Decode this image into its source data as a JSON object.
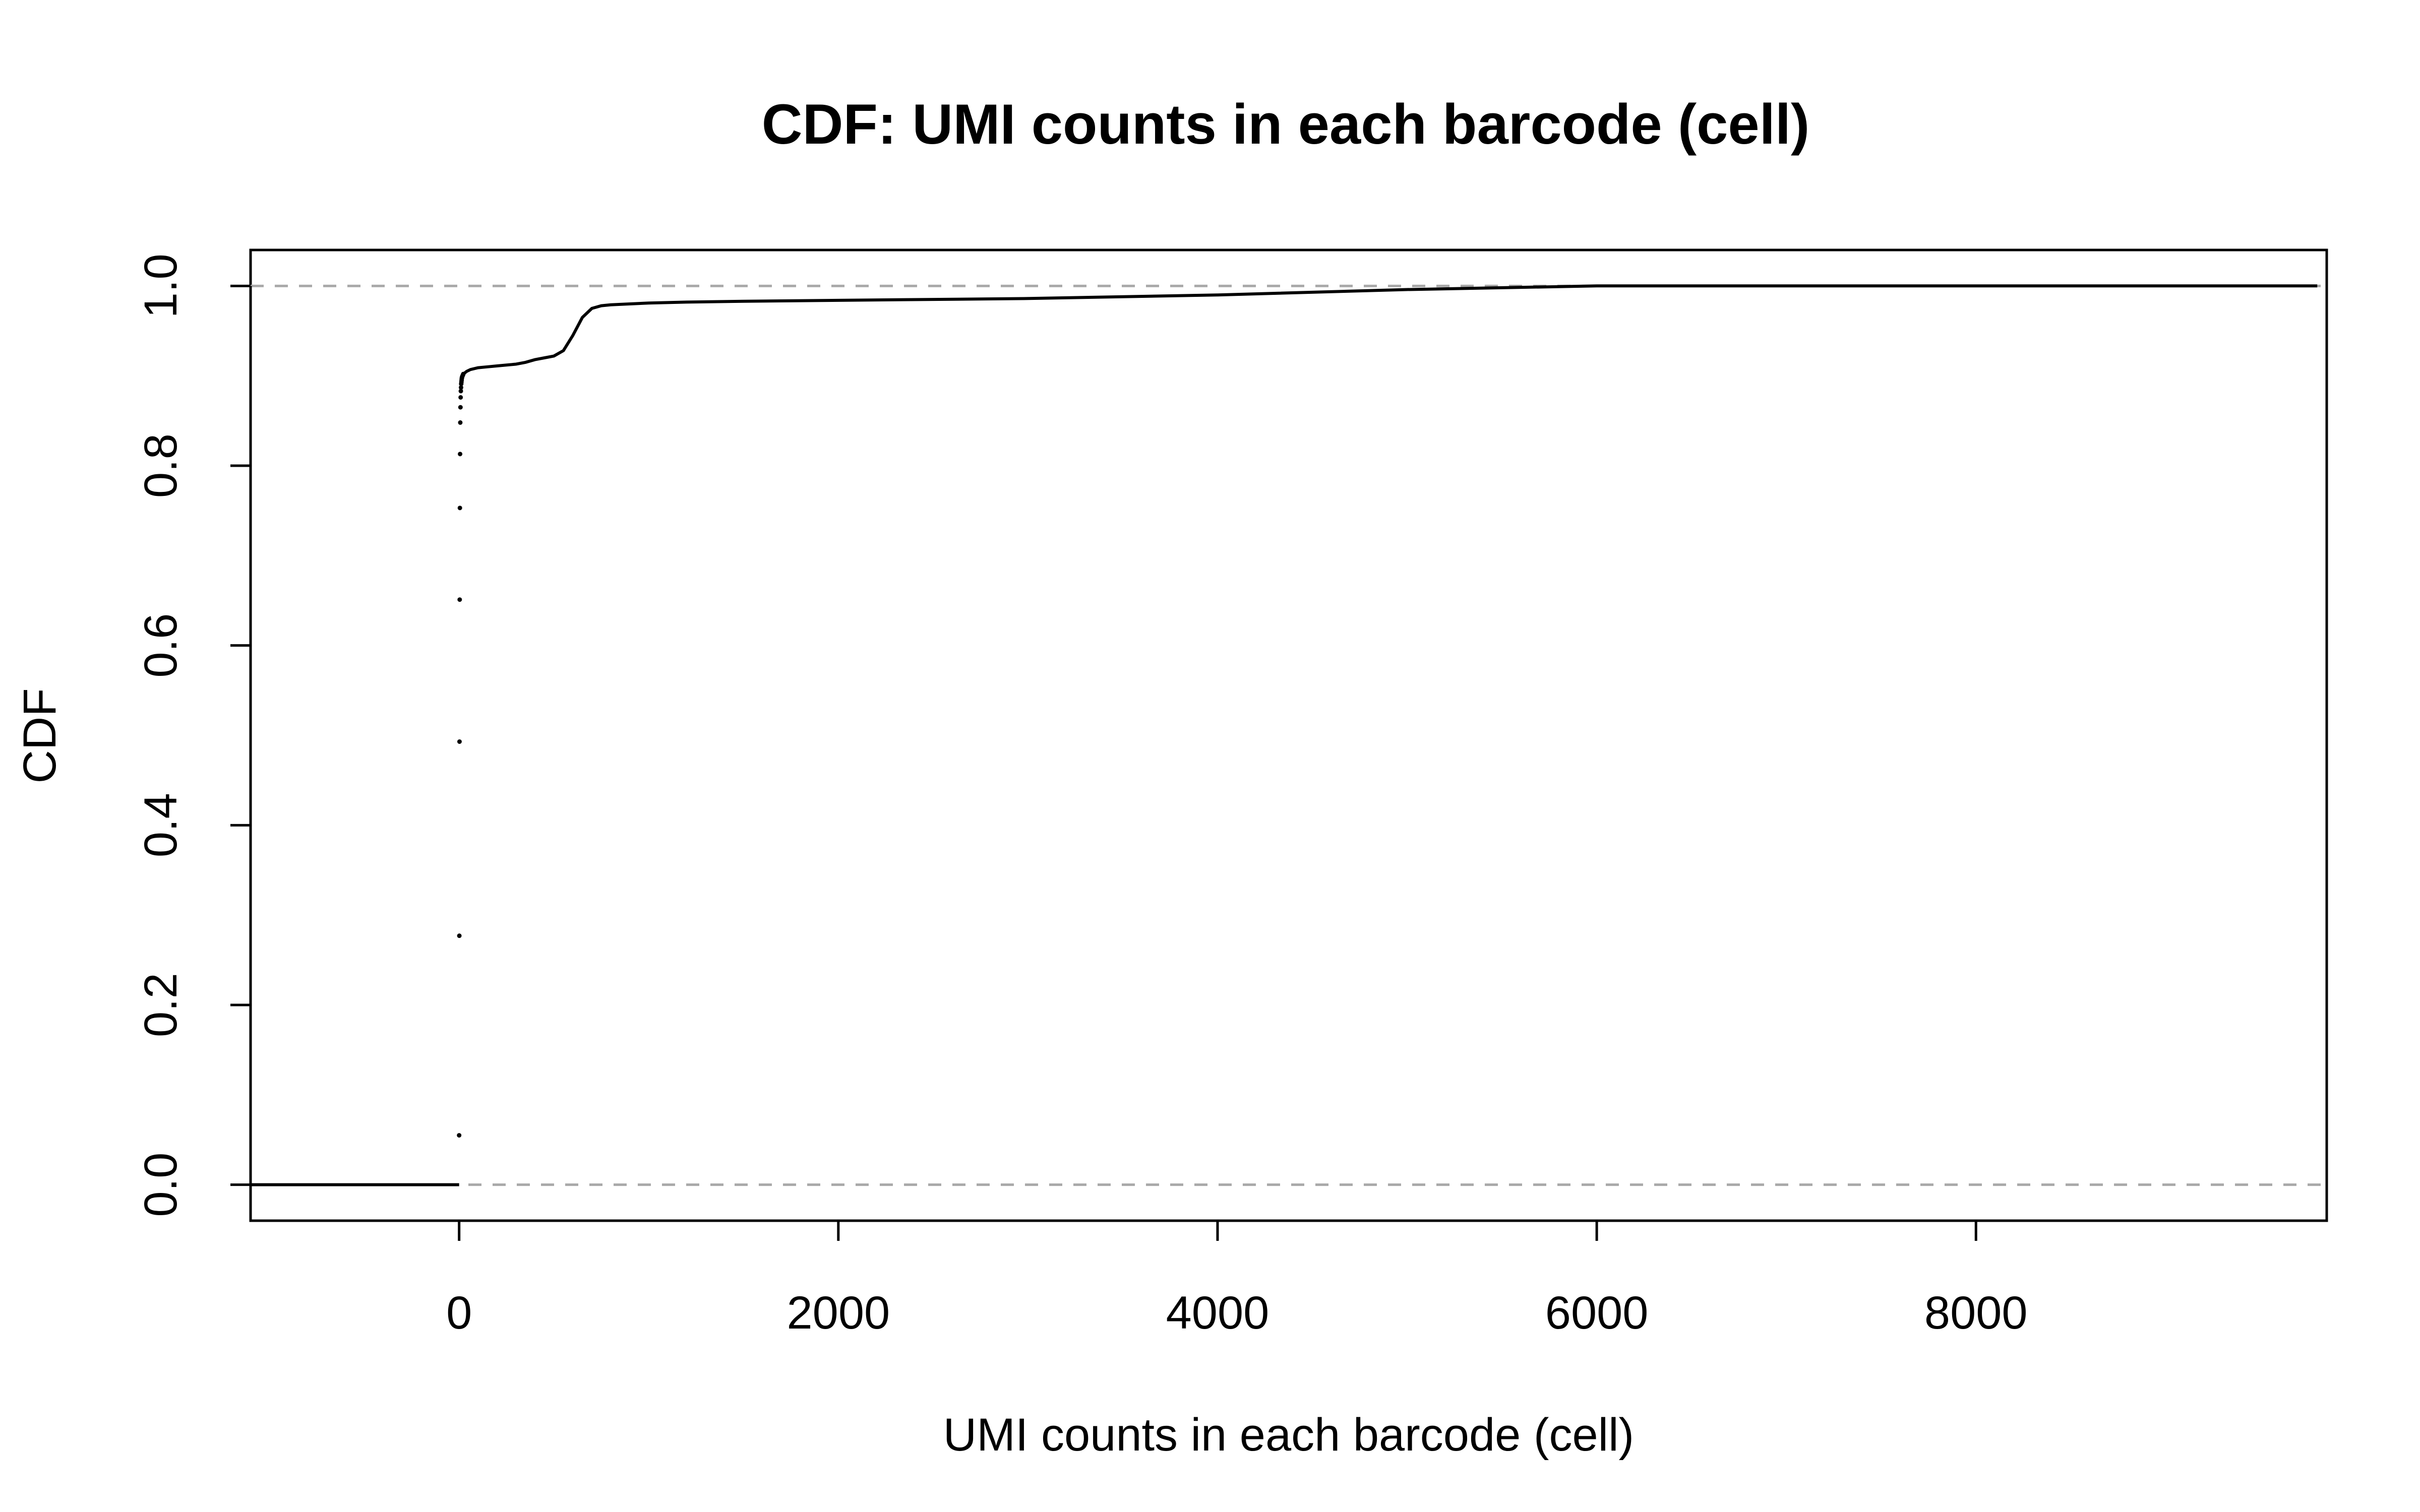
{
  "chart_data": {
    "type": "line",
    "title": "CDF: UMI counts in each barcode (cell)",
    "xlabel": "UMI counts in each barcode (cell)",
    "ylabel": "CDF",
    "xlim": [
      -1100,
      9850
    ],
    "ylim": [
      -0.04,
      1.04
    ],
    "x_ticks": [
      0,
      2000,
      4000,
      6000,
      8000
    ],
    "x_tick_labels": [
      "0",
      "2000",
      "4000",
      "6000",
      "8000"
    ],
    "y_ticks": [
      0.0,
      0.2,
      0.4,
      0.6,
      0.8,
      1.0
    ],
    "y_tick_labels": [
      "0.0",
      "0.2",
      "0.4",
      "0.6",
      "0.8",
      "1.0"
    ],
    "reference_lines": [
      0.0,
      1.0
    ],
    "reference_line_color": "#a9a9a9",
    "grid": false,
    "series": [
      {
        "values_left_tail": {
          "x": [
            -1100,
            0
          ],
          "y": [
            0.0,
            0.0
          ]
        },
        "steps_at_low_counts": {
          "x": [
            0,
            1,
            2,
            3,
            4,
            5,
            6,
            7,
            8,
            9,
            10,
            11,
            12,
            13,
            14,
            15,
            16,
            18,
            20,
            22
          ],
          "y": [
            0.055,
            0.277,
            0.493,
            0.651,
            0.753,
            0.813,
            0.848,
            0.865,
            0.876,
            0.883,
            0.887,
            0.891,
            0.893,
            0.895,
            0.897,
            0.898,
            0.899,
            0.9,
            0.901,
            0.902
          ]
        },
        "curve": {
          "x": [
            22,
            40,
            60,
            100,
            150,
            200,
            300,
            350,
            400,
            450,
            500,
            550,
            600,
            650,
            700,
            750,
            800,
            900,
            1000,
            1200,
            1500,
            2000,
            3000,
            4000,
            5000,
            5500,
            6000,
            8000,
            9800
          ],
          "y": [
            0.902,
            0.905,
            0.907,
            0.909,
            0.91,
            0.911,
            0.913,
            0.915,
            0.918,
            0.92,
            0.922,
            0.928,
            0.945,
            0.965,
            0.975,
            0.978,
            0.979,
            0.98,
            0.981,
            0.982,
            0.983,
            0.984,
            0.986,
            0.99,
            0.996,
            0.998,
            1.0,
            1.0,
            1.0
          ]
        }
      }
    ]
  }
}
